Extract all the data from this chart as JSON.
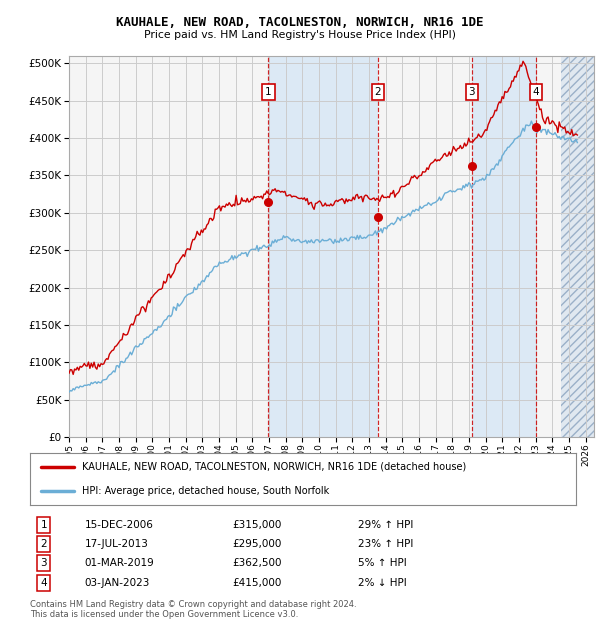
{
  "title1": "KAUHALE, NEW ROAD, TACOLNESTON, NORWICH, NR16 1DE",
  "title2": "Price paid vs. HM Land Registry's House Price Index (HPI)",
  "legend_line1": "KAUHALE, NEW ROAD, TACOLNESTON, NORWICH, NR16 1DE (detached house)",
  "legend_line2": "HPI: Average price, detached house, South Norfolk",
  "footer1": "Contains HM Land Registry data © Crown copyright and database right 2024.",
  "footer2": "This data is licensed under the Open Government Licence v3.0.",
  "transactions": [
    {
      "num": 1,
      "date": "15-DEC-2006",
      "price": "£315,000",
      "hpi": "29% ↑ HPI",
      "x": 2006.96
    },
    {
      "num": 2,
      "date": "17-JUL-2013",
      "price": "£295,000",
      "hpi": "23% ↑ HPI",
      "x": 2013.54
    },
    {
      "num": 3,
      "date": "01-MAR-2019",
      "price": "£362,500",
      "hpi": "5% ↑ HPI",
      "x": 2019.17
    },
    {
      "num": 4,
      "date": "03-JAN-2023",
      "price": "£415,000",
      "hpi": "2% ↓ HPI",
      "x": 2023.01
    }
  ],
  "transaction_values": [
    315000,
    295000,
    362500,
    415000
  ],
  "ylim": [
    0,
    510000
  ],
  "xlim_start": 1995.0,
  "xlim_end": 2026.5,
  "hpi_color": "#6baed6",
  "price_color": "#cc0000",
  "grid_color": "#cccccc",
  "shade_color": "#dce9f5",
  "hatch_color": "#c0cfe0",
  "plot_bg": "#f5f5f5"
}
